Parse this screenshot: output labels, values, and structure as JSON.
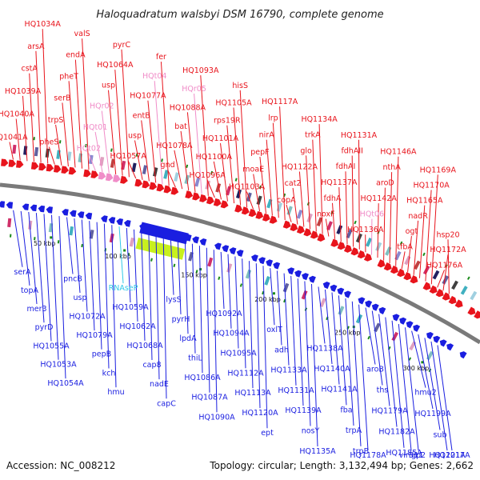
{
  "title": "Haloquadratum walsbyi DSM 16790, complete genome",
  "footer": {
    "accession": "Accession: NC_008212",
    "summary": "Topology: circular; Length: 3,132,494 bp; Genes: 2,662"
  },
  "colors": {
    "forward": "#e8141c",
    "reverse": "#1a1ee0",
    "pink": "#f08cc8",
    "cyan": "#30c8e8",
    "rna": "#c8f01e",
    "backbone": "#7a7a7a"
  },
  "ticks": [
    {
      "label": "50 kbp"
    },
    {
      "label": "100 kbp"
    },
    {
      "label": "150 kbp"
    },
    {
      "label": "200 kbp"
    },
    {
      "label": "250 kbp"
    },
    {
      "label": "300 kbp"
    }
  ],
  "top_labels": [
    {
      "text": "HQ1041A"
    },
    {
      "text": "HQ1040A"
    },
    {
      "text": "HQ1039A"
    },
    {
      "text": "cstA"
    },
    {
      "text": "arsA"
    },
    {
      "text": "HQ1034A"
    },
    {
      "text": "pheS"
    },
    {
      "text": "trpS"
    },
    {
      "text": "serB"
    },
    {
      "text": "pheT"
    },
    {
      "text": "endA"
    },
    {
      "text": "valS"
    },
    {
      "text": "HQt02"
    },
    {
      "text": "HQt01"
    },
    {
      "text": "HQr02"
    },
    {
      "text": "usp"
    },
    {
      "text": "HQ1064A"
    },
    {
      "text": "pyrC"
    },
    {
      "text": "HQ1057A"
    },
    {
      "text": "usp"
    },
    {
      "text": "entB"
    },
    {
      "text": "HQ1077A"
    },
    {
      "text": "HQt04"
    },
    {
      "text": "fer"
    },
    {
      "text": "gnd"
    },
    {
      "text": "HQ1078A"
    },
    {
      "text": "bat"
    },
    {
      "text": "HQ1088A"
    },
    {
      "text": "HQr05"
    },
    {
      "text": "HQ1093A"
    },
    {
      "text": "HQ1096A"
    },
    {
      "text": "HQ1100A"
    },
    {
      "text": "HQ1101A"
    },
    {
      "text": "rps19R"
    },
    {
      "text": "HQ1105A"
    },
    {
      "text": "hisS"
    },
    {
      "text": "HQ1103A"
    },
    {
      "text": "moaE"
    },
    {
      "text": "pepF"
    },
    {
      "text": "nirA"
    },
    {
      "text": "lrp"
    },
    {
      "text": "HQ1117A"
    },
    {
      "text": "copA"
    },
    {
      "text": "cat2"
    },
    {
      "text": "HQ1122A"
    },
    {
      "text": "glo"
    },
    {
      "text": "trkA"
    },
    {
      "text": "HQ1134A"
    },
    {
      "text": "noxF"
    },
    {
      "text": "fdhA"
    },
    {
      "text": "HQ1137A"
    },
    {
      "text": "fdhAI"
    },
    {
      "text": "fdhAII"
    },
    {
      "text": "HQ1131A"
    },
    {
      "text": "HQ1136A"
    },
    {
      "text": "HQt06"
    },
    {
      "text": "HQ1142A"
    },
    {
      "text": "aroD"
    },
    {
      "text": "nthA"
    },
    {
      "text": "HQ1146A"
    },
    {
      "text": "tfbA"
    },
    {
      "text": "ogt"
    },
    {
      "text": "nadR"
    },
    {
      "text": "HQ1165A"
    },
    {
      "text": "HQ1170A"
    },
    {
      "text": "HQ1169A"
    },
    {
      "text": "HQ1176A"
    },
    {
      "text": "HQ1172A"
    },
    {
      "text": "hsp20"
    }
  ],
  "bottom_labels": [
    {
      "text": "serA"
    },
    {
      "text": "topA"
    },
    {
      "text": "mer3"
    },
    {
      "text": "pyrD"
    },
    {
      "text": "HQ1055A"
    },
    {
      "text": "HQ1053A"
    },
    {
      "text": "HQ1054A"
    },
    {
      "text": "pncB"
    },
    {
      "text": "usp"
    },
    {
      "text": "HQ1072A"
    },
    {
      "text": "HQ1079A"
    },
    {
      "text": "pepB"
    },
    {
      "text": "kch"
    },
    {
      "text": "hmu"
    },
    {
      "text": "RNAseP"
    },
    {
      "text": "HQ1059A"
    },
    {
      "text": "HQ1062A"
    },
    {
      "text": "HQ1068A"
    },
    {
      "text": "cap8"
    },
    {
      "text": "nadE"
    },
    {
      "text": "capC"
    },
    {
      "text": "lysS"
    },
    {
      "text": "pyrH"
    },
    {
      "text": "lpdA"
    },
    {
      "text": "thiL"
    },
    {
      "text": "HQ1086A"
    },
    {
      "text": "HQ1087A"
    },
    {
      "text": "HQ1090A"
    },
    {
      "text": "HQ1092A"
    },
    {
      "text": "HQ1094A"
    },
    {
      "text": "HQ1095A"
    },
    {
      "text": "HQ1112A"
    },
    {
      "text": "HQ1113A"
    },
    {
      "text": "HQ1120A"
    },
    {
      "text": "ept"
    },
    {
      "text": "oxlT"
    },
    {
      "text": "adh"
    },
    {
      "text": "HQ1133A"
    },
    {
      "text": "HQ1131A"
    },
    {
      "text": "HQ1139A"
    },
    {
      "text": "nosY"
    },
    {
      "text": "HQ1135A"
    },
    {
      "text": "HQ1138A"
    },
    {
      "text": "HQ1140A"
    },
    {
      "text": "HQ1141A"
    },
    {
      "text": "fba"
    },
    {
      "text": "trpA"
    },
    {
      "text": "trpB"
    },
    {
      "text": "HQ1178A"
    },
    {
      "text": "aroB"
    },
    {
      "text": "ths"
    },
    {
      "text": "HQ1179A"
    },
    {
      "text": "HQ1182A"
    },
    {
      "text": "HQ1185A"
    },
    {
      "text": "virB11"
    },
    {
      "text": "gp2"
    },
    {
      "text": "hmu2"
    },
    {
      "text": "HQ1199A"
    },
    {
      "text": "sub"
    },
    {
      "text": "HQ1201A"
    },
    {
      "text": "HQ1217A"
    }
  ]
}
